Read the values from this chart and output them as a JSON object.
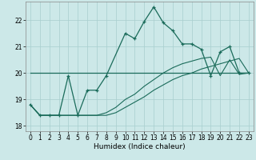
{
  "xlabel": "Humidex (Indice chaleur)",
  "xlim": [
    -0.5,
    23.5
  ],
  "ylim": [
    17.8,
    22.7
  ],
  "yticks": [
    18,
    19,
    20,
    21,
    22
  ],
  "xticks": [
    0,
    1,
    2,
    3,
    4,
    5,
    6,
    7,
    8,
    9,
    10,
    11,
    12,
    13,
    14,
    15,
    16,
    17,
    18,
    19,
    20,
    21,
    22,
    23
  ],
  "bg_color": "#cce8e8",
  "line_color": "#1a6b5a",
  "line1_x": [
    0,
    1,
    2,
    3,
    4,
    5,
    6,
    7,
    8,
    10,
    11,
    12,
    13,
    14,
    15,
    16,
    17,
    18,
    19,
    20,
    21,
    22,
    23
  ],
  "line1_y": [
    18.8,
    18.4,
    18.4,
    18.4,
    19.9,
    18.4,
    19.35,
    19.35,
    19.9,
    21.5,
    21.3,
    21.95,
    22.5,
    21.9,
    21.6,
    21.1,
    21.1,
    20.9,
    19.9,
    20.8,
    21.0,
    20.0,
    20.0
  ],
  "line2_x": [
    0,
    1,
    2,
    3,
    4,
    5,
    6,
    7,
    8,
    9,
    10,
    11,
    12,
    13,
    14,
    15,
    16,
    17,
    18,
    19,
    20,
    21,
    22,
    23
  ],
  "line2_y": [
    18.8,
    18.4,
    18.4,
    18.4,
    18.4,
    18.4,
    18.4,
    18.4,
    18.4,
    18.5,
    18.7,
    18.9,
    19.1,
    19.35,
    19.55,
    19.75,
    19.9,
    20.0,
    20.15,
    20.25,
    20.35,
    20.45,
    20.55,
    20.0
  ],
  "line3_x": [
    0,
    1,
    2,
    3,
    4,
    5,
    6,
    7,
    8,
    9,
    10,
    11,
    12,
    13,
    14,
    15,
    16,
    17,
    18,
    19,
    20,
    21,
    22,
    23
  ],
  "line3_y": [
    18.8,
    18.4,
    18.4,
    18.4,
    18.4,
    18.4,
    18.4,
    18.4,
    18.5,
    18.7,
    19.0,
    19.2,
    19.5,
    19.75,
    20.0,
    20.2,
    20.35,
    20.45,
    20.55,
    20.6,
    19.9,
    20.5,
    19.95,
    20.0
  ],
  "line4_x": [
    0,
    22
  ],
  "line4_y": [
    20.0,
    20.0
  ]
}
